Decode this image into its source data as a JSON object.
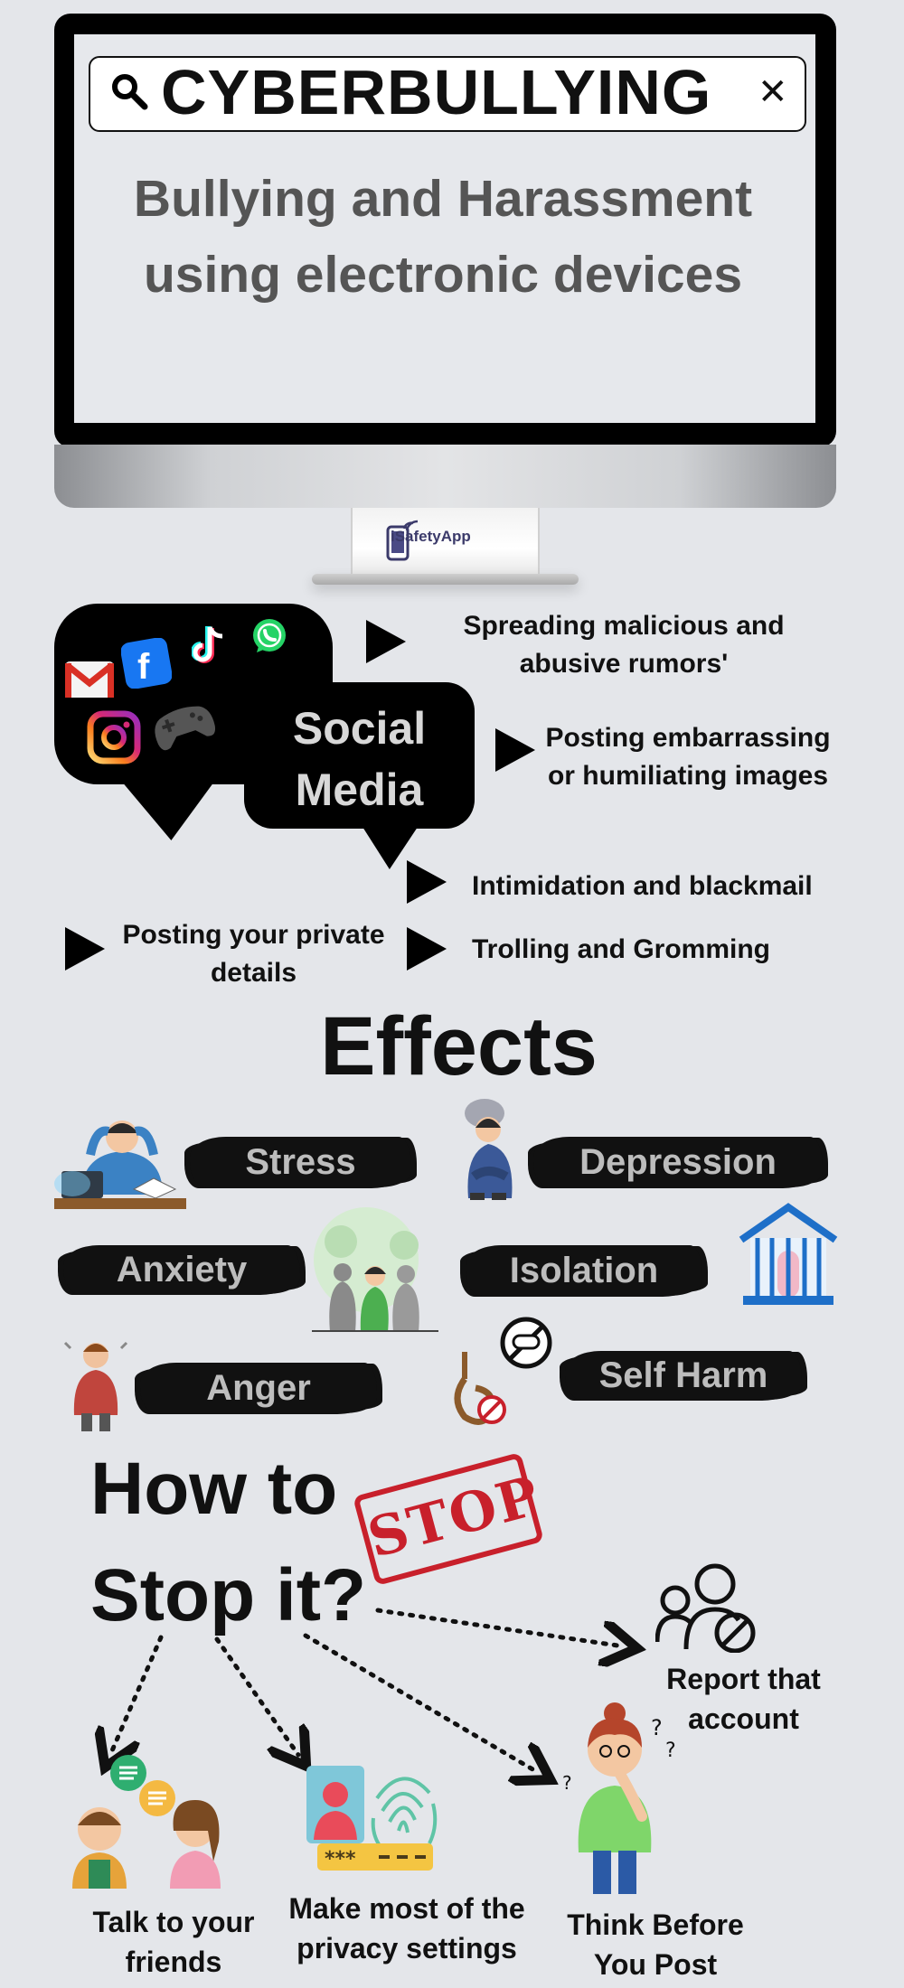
{
  "monitor": {
    "search_text": "CYBERBULLYING",
    "subtitle": "Bullying and Harassment using electronic devices",
    "brand": "iSafetyApp",
    "icons": [
      "search-icon",
      "close-icon",
      "phone-logo-icon"
    ]
  },
  "social_media": {
    "title": "Social Media",
    "app_icons": [
      "gmail-icon",
      "facebook-icon",
      "tiktok-icon",
      "whatsapp-icon",
      "instagram-icon",
      "gamepad-icon"
    ],
    "items": [
      "Spreading malicious and abusive rumors'",
      "Posting embarrassing or humiliating images",
      "Intimidation and blackmail",
      "Posting your private details",
      "Trolling and Gromming"
    ]
  },
  "effects": {
    "title": "Effects",
    "items": [
      "Stress",
      "Depression",
      "Anxiety",
      "Isolation",
      "Anger",
      "Self Harm"
    ]
  },
  "stop": {
    "title_line1": "How to",
    "title_line2": "Stop it?",
    "stamp": "STOP",
    "tips": [
      "Report that account",
      "Talk to your friends",
      "Make most of the privacy settings",
      "Think Before You Post"
    ]
  },
  "colors": {
    "background": "#e4e6ea",
    "brush": "#111111",
    "stamp_red": "#c8202b",
    "screen_text": "#555555"
  }
}
